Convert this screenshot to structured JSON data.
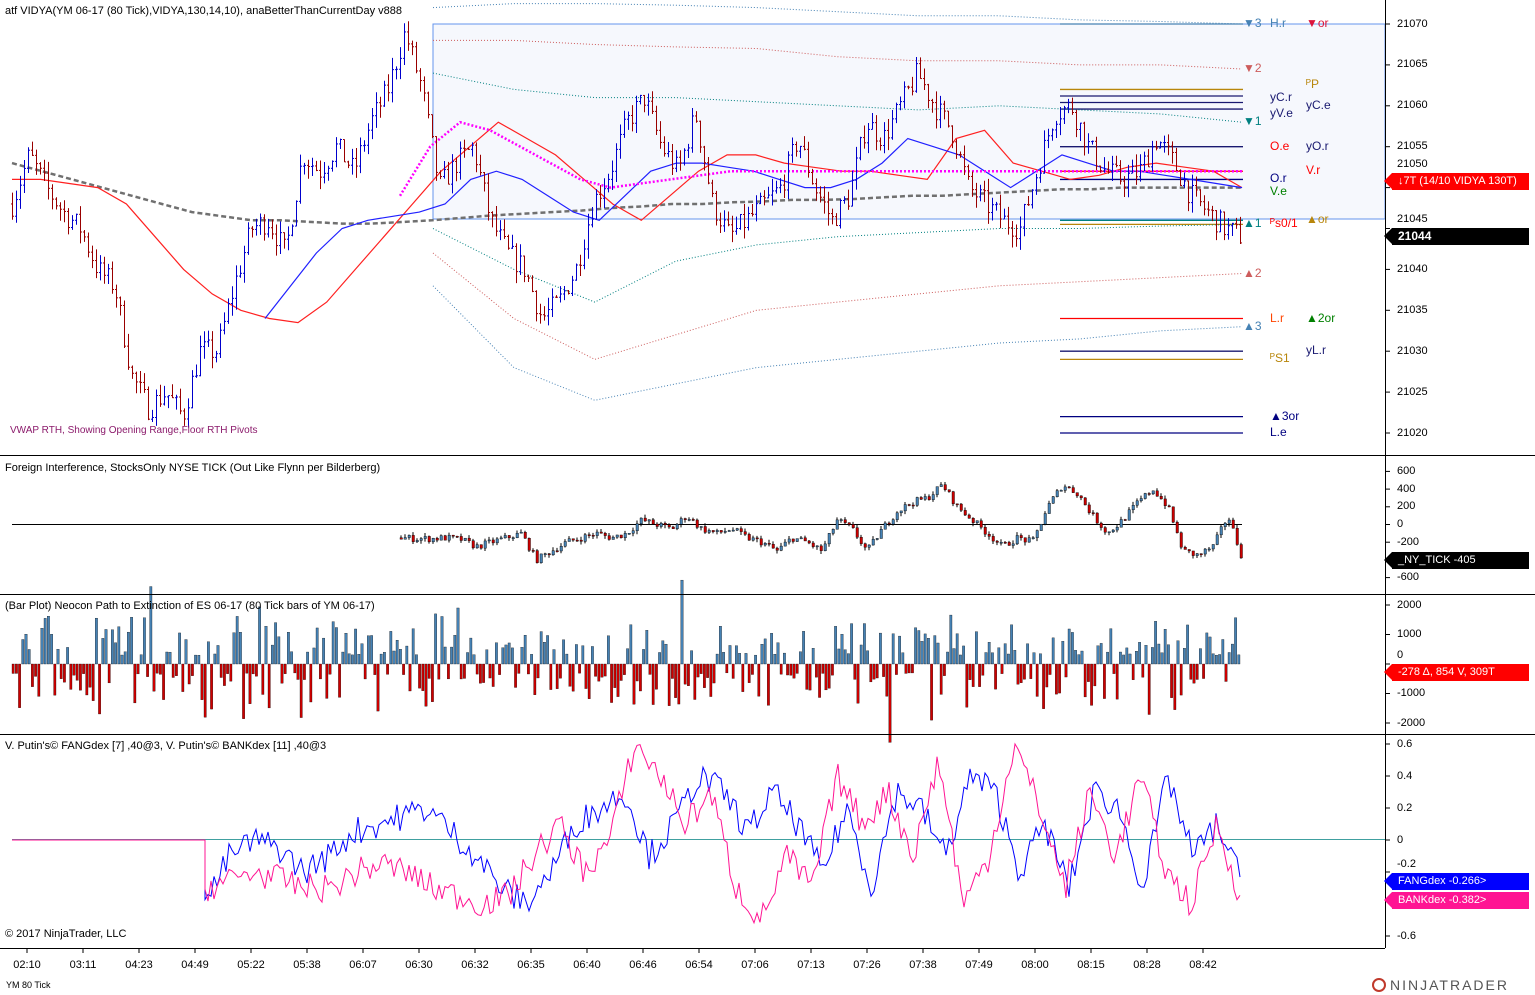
{
  "panels": {
    "price_title": "atf VIDYA(YM 06-17 (80 Tick),VIDYA,130,14,10), anaBetterThanCurrentDay v888",
    "price_note": "VWAP RTH, Showing Opening Range,Floor RTH Pivots",
    "tick_title": "Foreign Interference, StocksOnly NYSE TICK (Out Like Flynn per Bilderberg)",
    "bar_title": "(Bar Plot) Neocon Path to Extinction of ES 06-17 (80 Tick bars of YM 06-17)",
    "dex_title": "V. Putin's© FANGdex [7] ,40@3, V. Putin's© BANKdex [11] ,40@3",
    "copyright": "© 2017 NinjaTrader, LLC",
    "instrument": "YM 80 Tick",
    "logo": "NINJATRADER"
  },
  "tags": {
    "vidya": "↓7T  (14/10 VIDYA 130T)",
    "last_price": "21044",
    "ny_tick": "_NY_TICK  -405",
    "bar_plot": "-278 Δ, 854 V, 309T",
    "fangdex": "FANGdex -0.266>",
    "bankdex": "BANKdex -0.382>"
  },
  "levels": [
    {
      "text": "▼3",
      "price": 21070,
      "col": 0,
      "color": "#4682b4"
    },
    {
      "text": "H.r",
      "price": 21070,
      "col": 1,
      "color": "#4682b4"
    },
    {
      "text": "▼or",
      "price": 21070,
      "col": 2,
      "color": "#dc143c"
    },
    {
      "text": "▼2",
      "price": 21064.5,
      "col": 0,
      "color": "#cd5c5c"
    },
    {
      "text": "ᴾP",
      "price": 21062.5,
      "col": 2,
      "color": "#b8860b"
    },
    {
      "text": "yC.r",
      "price": 21061,
      "col": 1,
      "color": "#191970"
    },
    {
      "text": "yC.e",
      "price": 21060,
      "col": 2,
      "color": "#191970"
    },
    {
      "text": "yV.e",
      "price": 21059,
      "col": 1,
      "color": "#191970"
    },
    {
      "text": "▼1",
      "price": 21058,
      "col": 0,
      "color": "#008080"
    },
    {
      "text": "O.e",
      "price": 21055,
      "col": 1,
      "color": "#ff0000"
    },
    {
      "text": "yO.r",
      "price": 21055,
      "col": 2,
      "color": "#191970"
    },
    {
      "text": "V.r",
      "price": 21052,
      "col": 2,
      "color": "#ff0000"
    },
    {
      "text": "O.r",
      "price": 21051,
      "col": 1,
      "color": "#000080"
    },
    {
      "text": "V.e",
      "price": 21049.5,
      "col": 1,
      "color": "#008000"
    },
    {
      "text": "▲1",
      "price": 21045.5,
      "col": 0,
      "color": "#008080"
    },
    {
      "text": "ᴾs0/1",
      "price": 21045.5,
      "col": 1,
      "color": "#ff0000"
    },
    {
      "text": "▲or",
      "price": 21046,
      "col": 2,
      "color": "#b8860b"
    },
    {
      "text": "▲2",
      "price": 21039.5,
      "col": 0,
      "color": "#cd5c5c"
    },
    {
      "text": "L.r",
      "price": 21034,
      "col": 1,
      "color": "#ff4500"
    },
    {
      "text": "▲2or",
      "price": 21034,
      "col": 2,
      "color": "#008000"
    },
    {
      "text": "▲3",
      "price": 21033,
      "col": 0,
      "color": "#4682b4"
    },
    {
      "text": "yL.r",
      "price": 21030,
      "col": 2,
      "color": "#191970"
    },
    {
      "text": "ᴾS1",
      "price": 21029,
      "col": 1,
      "color": "#b8860b"
    },
    {
      "text": "▲3or",
      "price": 21022,
      "col": 1,
      "color": "#000080"
    },
    {
      "text": "L.e",
      "price": 21020,
      "col": 1,
      "color": "#000080"
    }
  ],
  "level_lines": [
    {
      "price": 21070,
      "color": "#4682b4"
    },
    {
      "price": 21062,
      "color": "#b8860b"
    },
    {
      "price": 21061.2,
      "color": "#191970"
    },
    {
      "price": 21060.4,
      "color": "#191970"
    },
    {
      "price": 21059.6,
      "color": "#191970"
    },
    {
      "price": 21055,
      "color": "#191970"
    },
    {
      "price": 21052,
      "color": "#ff0000"
    },
    {
      "price": 21051,
      "color": "#000080"
    },
    {
      "price": 21046,
      "color": "#008080"
    },
    {
      "price": 21045.5,
      "color": "#b8860b"
    },
    {
      "price": 21034,
      "color": "#ff0000"
    },
    {
      "price": 21030,
      "color": "#191970"
    },
    {
      "price": 21029,
      "color": "#b8860b"
    },
    {
      "price": 21022,
      "color": "#000080"
    },
    {
      "price": 21020,
      "color": "#000080"
    }
  ],
  "chart_data": [
    {
      "type": "line",
      "name": "price",
      "ylim": [
        21017,
        21071
      ],
      "yticks": [
        21070,
        21065,
        21060,
        21055,
        21050,
        21045,
        21040,
        21035,
        21030,
        21025,
        21020
      ],
      "x": [
        "02:10",
        "03:11",
        "04:23",
        "04:49",
        "05:22",
        "05:38",
        "06:07",
        "06:30",
        "06:32",
        "06:35",
        "06:40",
        "06:46",
        "06:54",
        "07:06",
        "07:13",
        "07:26",
        "07:38",
        "07:49",
        "08:00",
        "08:15",
        "08:28",
        "08:42"
      ],
      "closes": [
        21048,
        21054,
        21050,
        21047,
        21045,
        21040,
        21038,
        21027,
        21023,
        21025,
        21022,
        21030,
        21030,
        21038,
        21045,
        21046,
        21042,
        21054,
        21052,
        21055,
        21052,
        21058,
        21062,
        21069,
        21062,
        21050,
        21053,
        21055,
        21046,
        21042,
        21040,
        21034,
        21036,
        21040,
        21048,
        21052,
        21058,
        21061,
        21055,
        21052,
        21059,
        21048,
        21044,
        21046,
        21048,
        21050,
        21056,
        21050,
        21046,
        21049,
        21058,
        21056,
        21060,
        21064,
        21060,
        21057,
        21050,
        21048,
        21046,
        21045,
        21052,
        21059,
        21060,
        21055,
        21052,
        21051,
        21052,
        21056,
        21053,
        21049,
        21047,
        21045,
        21044
      ],
      "vwap_rth": [
        21053,
        21052,
        21051,
        21050,
        21049,
        21048,
        21047,
        21046.5,
        21046,
        21046,
        21045.8,
        21045.6,
        21045.6,
        21045.8,
        21046,
        21046.3,
        21046.6,
        21046.8,
        21047,
        21047.2,
        21047.5,
        21047.7,
        21048,
        21048,
        21048.2,
        21048.3,
        21048.5,
        21048.5,
        21048.6,
        21048.8,
        21049,
        21049,
        21049.2,
        21049.4,
        21049.6,
        21049.8,
        21049.8,
        21050,
        21050,
        21050,
        21050,
        21050
      ],
      "red_ma": [
        21051,
        21051,
        21050.5,
        21050,
        21048,
        21044,
        21040,
        21037,
        21035,
        21034,
        21033.5,
        21036,
        21040,
        21044,
        21048,
        21052,
        21055,
        21058,
        21056,
        21054,
        21051,
        21048,
        21046,
        21049,
        21052,
        21054,
        21054,
        21053,
        21052.5,
        21052,
        21052,
        21051.5,
        21051,
        21056,
        21057,
        21053,
        21052,
        21051,
        21051.5,
        21052.5,
        21053,
        21052.5,
        21052,
        21050
      ],
      "blue_ma": [
        21034,
        21038,
        21042,
        21045,
        21046,
        21046.5,
        21047,
        21048,
        21051,
        21052,
        21051,
        21049,
        21047,
        21046,
        21049,
        21052,
        21053,
        21053,
        21052.5,
        21052,
        21051,
        21050,
        21050,
        21051,
        21053,
        21056,
        21055,
        21054,
        21052,
        21050,
        21052,
        21054,
        21053,
        21052,
        21052,
        21051.5,
        21051,
        21050.5,
        21050
      ],
      "opening_range_vwap": [
        21049,
        21055,
        21058,
        21057,
        21055,
        21053,
        21051,
        21050,
        21050.5,
        21051,
        21051.5,
        21052,
        21052,
        21052,
        21052,
        21052,
        21052,
        21052,
        21052,
        21052,
        21052,
        21052,
        21052,
        21052,
        21052,
        21052,
        21052,
        21052,
        21052
      ],
      "bands": [
        {
          "name": "upper3",
          "color": "#4682b4",
          "values": [
            21072,
            21072.5,
            21072.5,
            21072.3,
            21072,
            21071.5,
            21071,
            21071,
            21070.5,
            21070.3,
            21070
          ]
        },
        {
          "name": "upper2",
          "color": "#cd5c5c",
          "values": [
            21068,
            21068,
            21067.5,
            21067.2,
            21067,
            21066,
            21065.5,
            21065.5,
            21065,
            21065,
            21064.5
          ]
        },
        {
          "name": "upper1",
          "color": "#008080",
          "values": [
            21064,
            21062,
            21061,
            21061,
            21060.5,
            21060,
            21059.5,
            21060,
            21059.5,
            21059,
            21058
          ]
        },
        {
          "name": "lower1",
          "color": "#008080",
          "values": [
            21045,
            21040,
            21036,
            21041,
            21043,
            21044,
            21044.5,
            21045,
            21045,
            21045.3,
            21045.5
          ]
        },
        {
          "name": "lower2",
          "color": "#cd5c5c",
          "values": [
            21042,
            21034,
            21029,
            21032,
            21035,
            21036,
            21037,
            21038,
            21038.5,
            21039,
            21039.5
          ]
        },
        {
          "name": "lower3",
          "color": "#4682b4",
          "values": [
            21038,
            21028,
            21024,
            21026,
            21028,
            21029,
            21030,
            21031,
            21031.5,
            21032.5,
            21033
          ]
        }
      ]
    },
    {
      "type": "bar",
      "name": "nyse_tick",
      "ylim": [
        -700,
        700
      ],
      "yticks": [
        600,
        400,
        200,
        0,
        -200,
        -600
      ],
      "values": [
        -150,
        -160,
        -160,
        -150,
        -170,
        -250,
        -200,
        -150,
        -100,
        -400,
        -300,
        -200,
        -150,
        -100,
        -150,
        -100,
        50,
        0,
        -50,
        100,
        -50,
        -100,
        -50,
        -150,
        -200,
        -300,
        -150,
        -200,
        -300,
        50,
        -50,
        -300,
        -50,
        150,
        250,
        300,
        450,
        200,
        50,
        -100,
        -250,
        -150,
        -200,
        200,
        450,
        350,
        100,
        -100,
        50,
        250,
        400,
        200,
        -300,
        -350,
        -250,
        100,
        -405
      ]
    },
    {
      "type": "bar",
      "name": "delta_bar_plot",
      "ylim": [
        -2200,
        2200
      ],
      "yticks": [
        2000,
        1000,
        0,
        -1000,
        -2000
      ],
      "last": -278
    },
    {
      "type": "line",
      "name": "dex",
      "ylim": [
        -0.65,
        0.65
      ],
      "yticks": [
        0.6,
        0.4,
        0.2,
        0,
        -0.2,
        -0.6
      ],
      "series": [
        {
          "name": "FANGdex",
          "color": "#0000ff",
          "values": [
            -0.4,
            -0.1,
            0,
            -0.05,
            -0.2,
            -0.1,
            0.05,
            0.1,
            0.15,
            0.2,
            0.05,
            -0.1,
            -0.3,
            -0.4,
            -0.2,
            0.1,
            0.2,
            0.3,
            -0.1,
            0.1,
            0.4,
            0.3,
            0.05,
            0.3,
            0.1,
            -0.2,
            0.2,
            -0.3,
            0.3,
            0.2,
            -0.1,
            0.4,
            0.3,
            -0.2,
            0.1,
            -0.3,
            0.3,
            0.2,
            -0.3,
            0.4,
            -0.1,
            0.1,
            -0.266
          ]
        },
        {
          "name": "BANKdex",
          "color": "#ff1493",
          "values": [
            -0.3,
            -0.25,
            -0.2,
            -0.25,
            -0.3,
            -0.3,
            -0.2,
            -0.15,
            -0.2,
            -0.3,
            -0.35,
            -0.4,
            -0.35,
            -0.1,
            0.1,
            -0.2,
            0,
            0.6,
            0.4,
            0.1,
            0.3,
            -0.3,
            -0.5,
            -0.1,
            -0.3,
            0.4,
            0.1,
            0.3,
            -0.1,
            0.5,
            -0.4,
            -0.1,
            0.6,
            0.2,
            -0.3,
            0.3,
            -0.1,
            0.4,
            -0.2,
            -0.4,
            0.1,
            -0.382
          ]
        }
      ]
    }
  ]
}
